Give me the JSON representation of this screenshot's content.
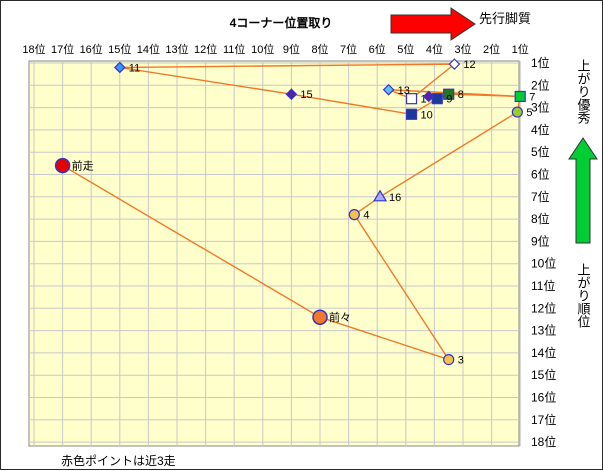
{
  "colors": {
    "plot_bg": "#ffffcc",
    "grid": "#c8c8c8",
    "line": "#f07828",
    "arrow_red": "#ff0000",
    "arrow_green": "#00cc33",
    "red_point": "#e60000",
    "orange_point": "#f07828",
    "marker_edge": "#3333cc"
  },
  "texts": {
    "title": "4コーナー位置取り",
    "top_arrow_label": "先行脚質",
    "right_upper_label": "上がり優秀",
    "right_lower_label": "上がり順位",
    "footer_note": "赤色ポイントは近3走"
  },
  "chart_data": {
    "type": "scatter",
    "title": "4コーナー位置取り",
    "x_axis": {
      "ticks": [
        "18位",
        "17位",
        "16位",
        "15位",
        "14位",
        "13位",
        "12位",
        "11位",
        "10位",
        "9位",
        "8位",
        "7位",
        "6位",
        "5位",
        "4位",
        "3位",
        "2位",
        "1位"
      ],
      "range": [
        18,
        1
      ],
      "orientation": "reversed"
    },
    "y_axis": {
      "ticks": [
        "1位",
        "2位",
        "3位",
        "4位",
        "5位",
        "6位",
        "7位",
        "8位",
        "9位",
        "10位",
        "11位",
        "12位",
        "13位",
        "14位",
        "15位",
        "16位",
        "17位",
        "18位"
      ],
      "range": [
        1,
        18
      ]
    },
    "grid": true,
    "connections": [
      [
        "前走",
        "前々"
      ],
      [
        "前々",
        "3"
      ],
      [
        "3",
        "4"
      ],
      [
        "4",
        "16"
      ],
      [
        "16",
        "5"
      ],
      [
        "5",
        "7"
      ],
      [
        "7",
        "8"
      ],
      [
        "8",
        "9"
      ],
      [
        "9",
        "10"
      ],
      [
        "10",
        "15"
      ],
      [
        "15",
        "11"
      ],
      [
        "11",
        "12"
      ],
      [
        "12",
        "1"
      ],
      [
        "1",
        "13"
      ],
      [
        "13",
        "7"
      ]
    ],
    "points": [
      {
        "label": "前走",
        "x": 17.0,
        "y": 5.6,
        "shape": "circle-large",
        "color": "#e60000"
      },
      {
        "label": "前々",
        "x": 8.0,
        "y": 12.4,
        "shape": "circle-large",
        "color": "#f07828"
      },
      {
        "label": "3",
        "x": 3.5,
        "y": 14.3,
        "shape": "circle",
        "color": "#f5c14b"
      },
      {
        "label": "4",
        "x": 6.8,
        "y": 7.8,
        "shape": "circle",
        "color": "#f5c14b"
      },
      {
        "label": "16",
        "x": 5.9,
        "y": 7.0,
        "shape": "triangle",
        "color": "#aaaaff"
      },
      {
        "label": "5",
        "x": 1.1,
        "y": 3.2,
        "shape": "circle",
        "color": "#99cc33"
      },
      {
        "label": "7",
        "x": 1.0,
        "y": 2.5,
        "shape": "square",
        "color": "#00cc33"
      },
      {
        "label": "8",
        "x": 3.5,
        "y": 2.4,
        "shape": "square",
        "color": "#227722"
      },
      {
        "label": "9",
        "x": 3.9,
        "y": 2.6,
        "shape": "square",
        "color": "#1a3a99"
      },
      {
        "label": "10",
        "x": 4.8,
        "y": 3.3,
        "shape": "square",
        "color": "#1a3a99"
      },
      {
        "label": "15",
        "x": 9.0,
        "y": 2.4,
        "shape": "diamond",
        "color": "#5522aa"
      },
      {
        "label": "11",
        "x": 15.0,
        "y": 1.2,
        "shape": "diamond",
        "color": "#3399ff"
      },
      {
        "label": "12",
        "x": 3.3,
        "y": 1.05,
        "shape": "diamond",
        "color": "#ffffff"
      },
      {
        "label": "1",
        "x": 4.8,
        "y": 2.6,
        "shape": "square",
        "color": "#ffffff"
      },
      {
        "label": "13",
        "x": 5.6,
        "y": 2.2,
        "shape": "diamond",
        "color": "#66bbff"
      },
      {
        "label": "",
        "x": 4.2,
        "y": 2.5,
        "shape": "diamond",
        "color": "#5522aa"
      }
    ]
  }
}
